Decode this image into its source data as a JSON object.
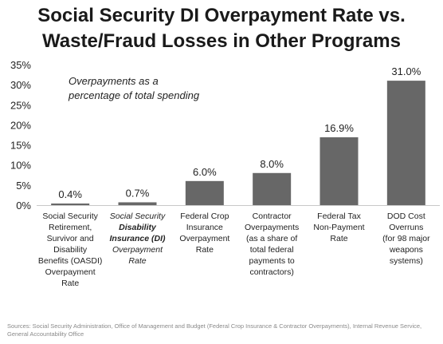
{
  "title_lines": [
    "Social Security DI Overpayment Rate vs.",
    "Waste/Fraud Losses in Other Programs"
  ],
  "annotation_lines": [
    "Overpayments as a",
    "percentage of total spending"
  ],
  "source": "Sources: Social Security Administration, Office of Management and Budget (Federal Crop Insurance & Contractor Overpayments), Internal Revenue Service, General Accountability Office",
  "chart_data": {
    "type": "bar",
    "title": "Social Security DI Overpayment Rate vs. Waste/Fraud Losses in Other Programs",
    "xlabel": "",
    "ylabel": "",
    "ylim": [
      0,
      35
    ],
    "yticks": [
      "0%",
      "5%",
      "10%",
      "15%",
      "20%",
      "25%",
      "30%",
      "35%"
    ],
    "grid": false,
    "bar_color": "#676767",
    "categories": [
      "Social Security Retirement, Survivor and Disability Benefits (OASDI) Overpayment Rate",
      "Social Security Disability Insurance (DI) Overpayment Rate",
      "Federal Crop Insurance Overpayment Rate",
      "Contractor Overpayments (as a share of total federal payments to contractors)",
      "Federal Tax Non-Payment Rate",
      "DOD Cost Overruns (for 98 major weapons systems)"
    ],
    "category_lines": [
      [
        "Social Security",
        "Retirement,",
        "Survivor and",
        "Disability",
        "Benefits (OASDI)",
        "Overpayment",
        "Rate"
      ],
      [
        "Social Security",
        "Disability",
        "Insurance (DI)",
        "Overpayment",
        "Rate"
      ],
      [
        "Federal Crop",
        "Insurance",
        "Overpayment",
        "Rate"
      ],
      [
        "Contractor",
        "Overpayments",
        "(as a share of",
        "total federal",
        "payments to",
        "contractors)"
      ],
      [
        "Federal Tax",
        "Non-Payment",
        "Rate"
      ],
      [
        "DOD Cost",
        "Overruns",
        "(for 98 major",
        "weapons",
        "systems)"
      ]
    ],
    "values": [
      0.4,
      0.7,
      6.0,
      8.0,
      16.9,
      31.0
    ],
    "value_labels": [
      "0.4%",
      "0.7%",
      "6.0%",
      "8.0%",
      "16.9%",
      "31.0%"
    ]
  }
}
